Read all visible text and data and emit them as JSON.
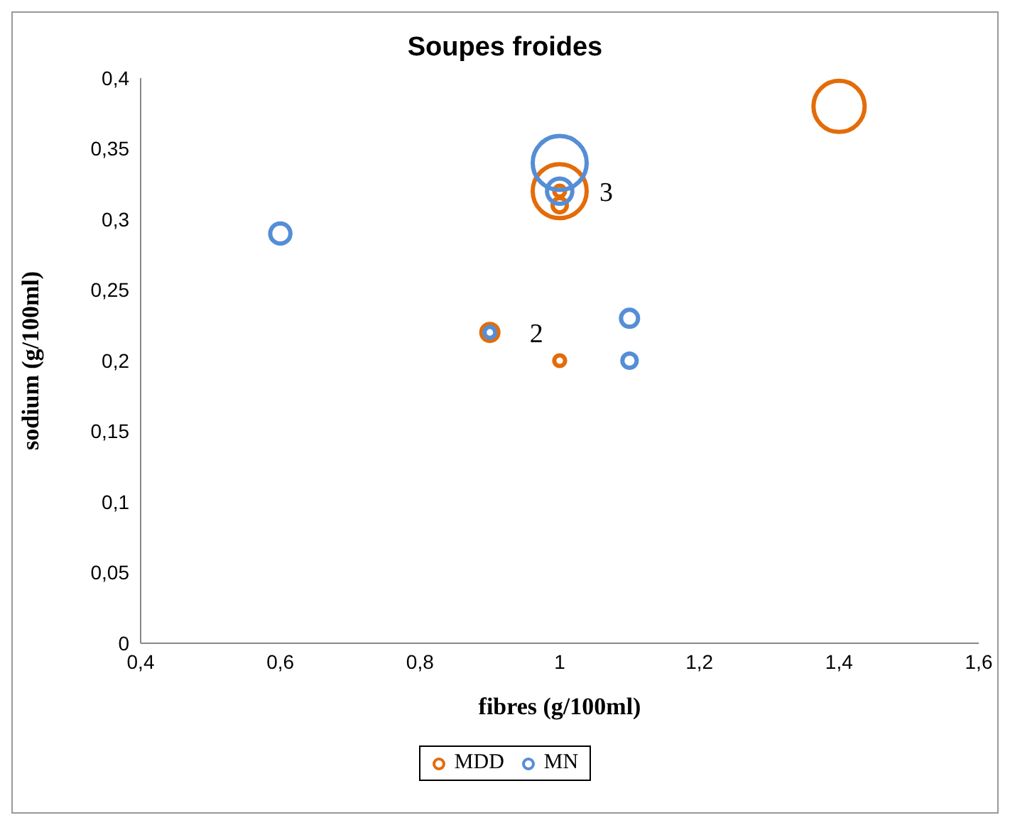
{
  "chart_data": {
    "type": "bubble",
    "title": "Soupes froides",
    "xlabel": "fibres (g/100ml)",
    "ylabel": "sodium (g/100ml)",
    "xlim": [
      0.4,
      1.6
    ],
    "xticks": [
      {
        "value": 0.4,
        "label": "0,4"
      },
      {
        "value": 0.6,
        "label": "0,6"
      },
      {
        "value": 0.8,
        "label": "0,8"
      },
      {
        "value": 1,
        "label": "1"
      },
      {
        "value": 1.2,
        "label": "1,2"
      },
      {
        "value": 1.4,
        "label": "1,4"
      },
      {
        "value": 1.6,
        "label": "1,6"
      }
    ],
    "ylim": [
      0,
      0.4
    ],
    "yticks": [
      0,
      {
        "value": 0.05,
        "label": "0,05"
      },
      {
        "value": 0.1,
        "label": "0,1"
      },
      {
        "value": 0.15,
        "label": "0,15"
      },
      {
        "value": 0.2,
        "label": "0,2"
      },
      {
        "value": 0.25,
        "label": "0,25"
      },
      {
        "value": 0.3,
        "label": "0,3"
      },
      {
        "value": 0.35,
        "label": "0,35"
      },
      {
        "value": 0.4,
        "label": "0,4"
      }
    ],
    "legend": "bottom",
    "marker": "circle",
    "series": [
      {
        "name": "MDD",
        "color": "#e36c09",
        "x": [
          1.4,
          1.0,
          1.0,
          1.0,
          0.9,
          1.0
        ],
        "values": [
          0.38,
          0.32,
          0.31,
          0.32,
          0.22,
          0.2
        ],
        "sizes": [
          0.9,
          0.04,
          0.07,
          1,
          0.1,
          0.04
        ]
      },
      {
        "name": "MN",
        "color": "#558ed5",
        "x": [
          1.0,
          1.0,
          0.6,
          1.1,
          1.1,
          0.9
        ],
        "values": [
          0.34,
          0.32,
          0.29,
          0.23,
          0.2,
          0.22
        ],
        "sizes": [
          1,
          0.22,
          0.14,
          0.1,
          0.07,
          0.04
        ]
      }
    ],
    "annotations": [
      {
        "text": "2",
        "x": 0.9,
        "y": 0.22
      },
      {
        "text": "3",
        "x": 1.0,
        "y": 0.32
      }
    ]
  }
}
